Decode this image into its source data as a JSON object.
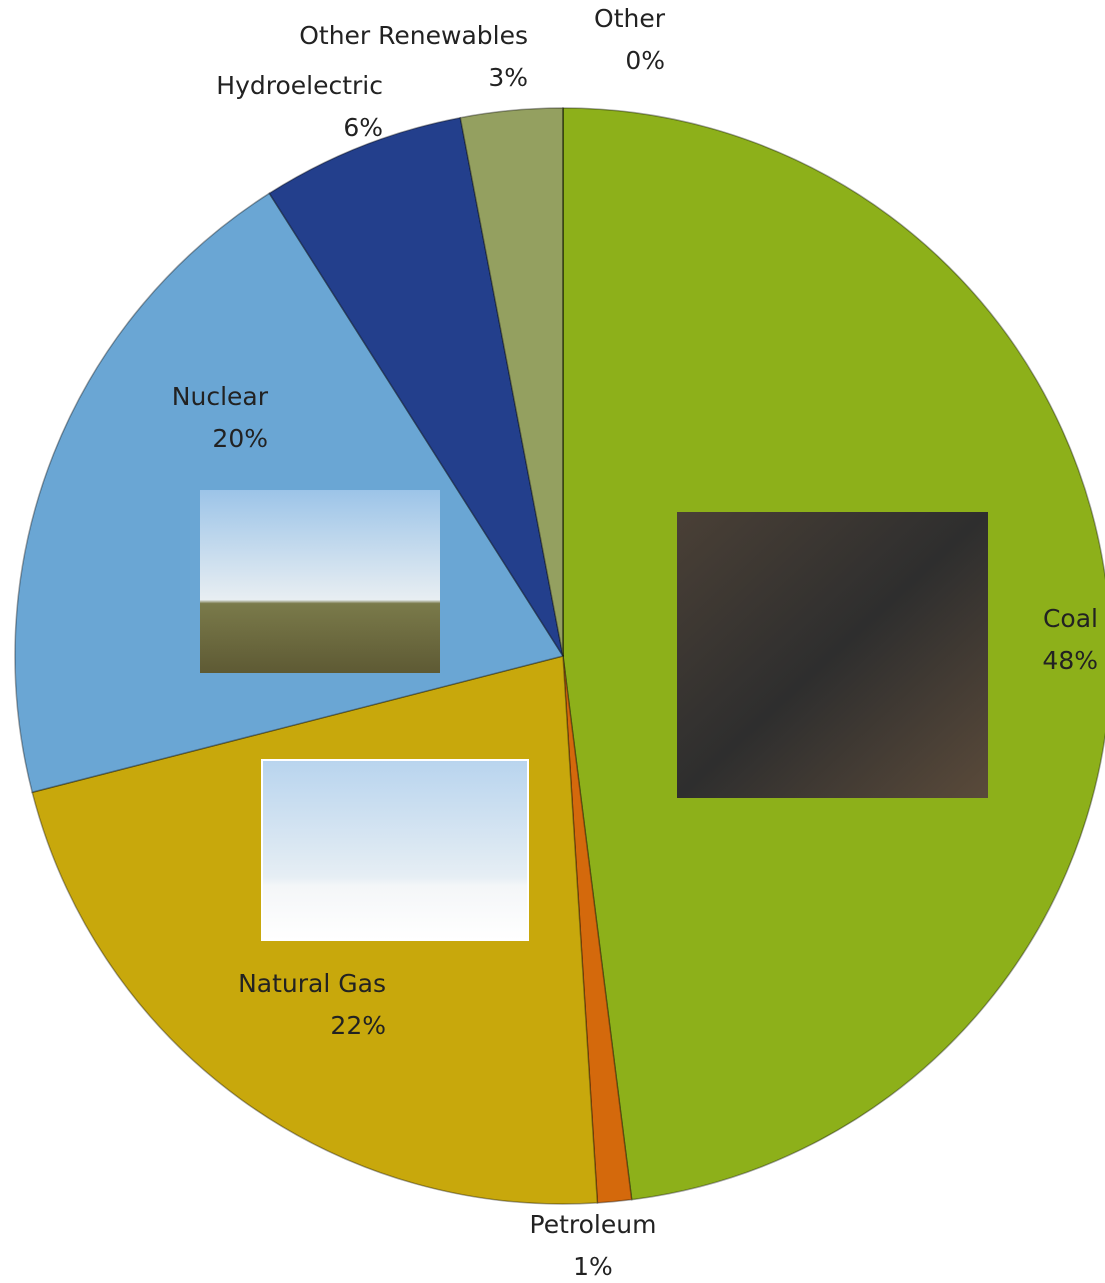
{
  "chart_data": {
    "type": "pie",
    "categories": [
      "Coal",
      "Petroleum",
      "Natural Gas",
      "Nuclear",
      "Hydroelectric",
      "Other Renewables",
      "Other"
    ],
    "values": [
      48,
      1,
      22,
      20,
      6,
      3,
      0
    ],
    "value_labels": [
      "48%",
      "1%",
      "22%",
      "20%",
      "6%",
      "3%",
      "0%"
    ],
    "colors": [
      "#8db01a",
      "#d4690c",
      "#c8a80c",
      "#6aa6d4",
      "#233f8c",
      "#94a060",
      "#c4d47a"
    ]
  }
}
